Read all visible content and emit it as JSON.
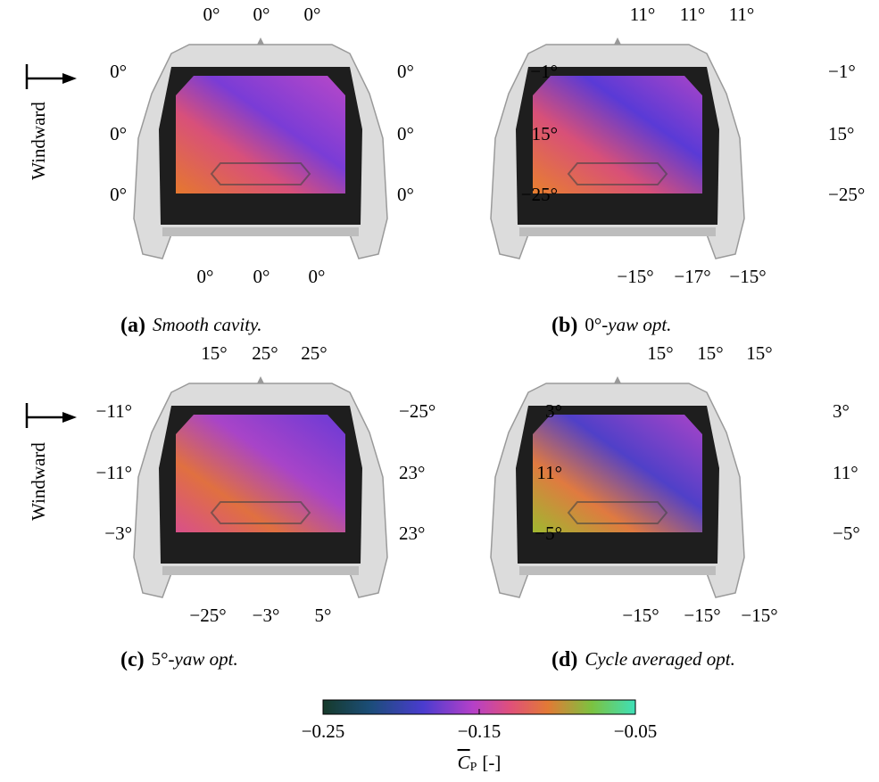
{
  "windward": "Windward",
  "panels": [
    {
      "top": [
        "0°",
        "0°",
        "0°"
      ],
      "left": [
        "0°",
        "0°",
        "0°"
      ],
      "right": [
        "0°",
        "0°",
        "0°"
      ],
      "bottom": [
        "0°",
        "0°",
        "0°"
      ],
      "caption": {
        "letter": "(a)",
        "italic": "Smooth cavity."
      }
    },
    {
      "top": [
        "11°",
        "11°",
        "11°"
      ],
      "left": [
        "−1°",
        "15°",
        "−25°"
      ],
      "right": [
        "−1°",
        "15°",
        "−25°"
      ],
      "bottom": [
        "−15°",
        "−17°",
        "−15°"
      ],
      "caption": {
        "letter": "(b)",
        "upright": "0°",
        "italic": "-yaw opt."
      }
    },
    {
      "top": [
        "15°",
        "25°",
        "25°"
      ],
      "left": [
        "−11°",
        "−11°",
        "−3°"
      ],
      "right": [
        "−25°",
        "23°",
        "23°"
      ],
      "bottom": [
        "−25°",
        "−3°",
        "5°"
      ],
      "caption": {
        "letter": "(c)",
        "upright": "5°",
        "italic": "-yaw opt."
      }
    },
    {
      "top": [
        "15°",
        "15°",
        "15°"
      ],
      "left": [
        "3°",
        "11°",
        "−5°"
      ],
      "right": [
        "3°",
        "11°",
        "−5°"
      ],
      "bottom": [
        "−15°",
        "−15°",
        "−15°"
      ],
      "caption": {
        "letter": "(d)",
        "italic": "Cycle averaged opt."
      }
    }
  ],
  "colorbar": {
    "ticks": [
      "−0.25",
      "−0.15",
      "−0.05"
    ],
    "symbol": "C",
    "subscript": "P",
    "unit": "[-]"
  }
}
